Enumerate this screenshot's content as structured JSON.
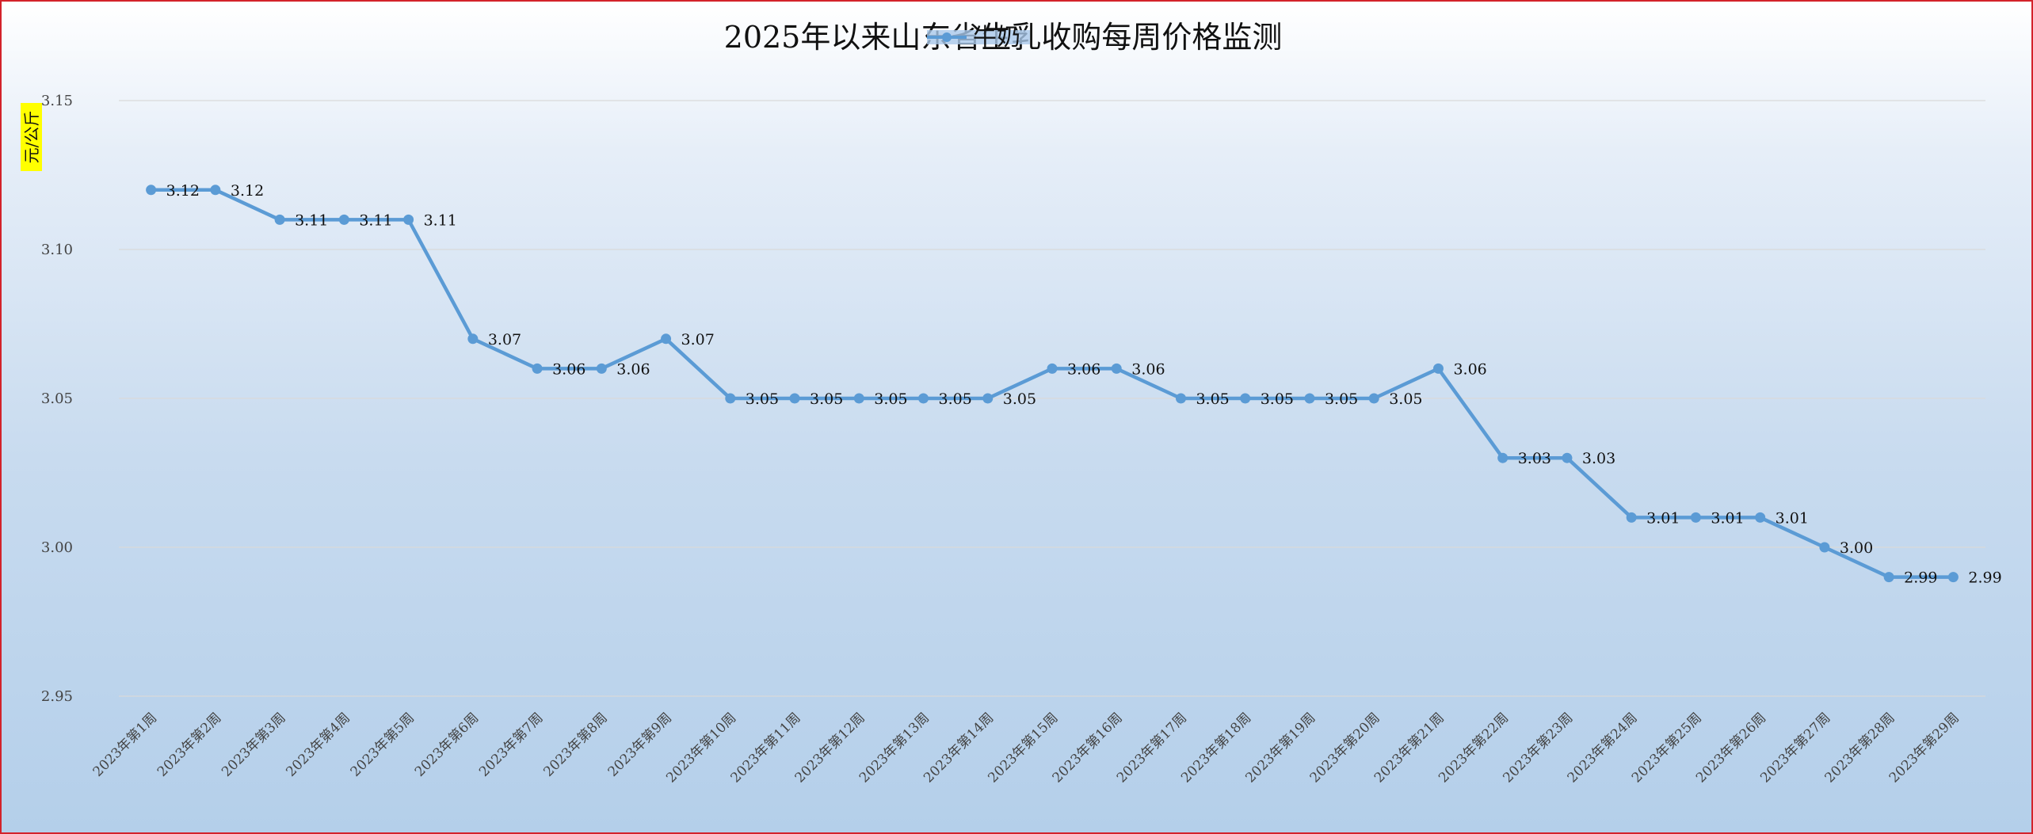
{
  "chart_data": {
    "type": "line",
    "title": "2025年以来山东省生乳收购每周价格监测",
    "ylabel": "元/公斤",
    "xlabel": "",
    "ylim": [
      2.95,
      3.15
    ],
    "yticks": [
      "2.95",
      "3.00",
      "3.05",
      "3.10",
      "3.15"
    ],
    "grid": true,
    "legend_position": "top-right",
    "categories": [
      "2023年第1周",
      "2023年第2周",
      "2023年第3周",
      "2023年第4周",
      "2023年第5周",
      "2023年第6周",
      "2023年第7周",
      "2023年第8周",
      "2023年第9周",
      "2023年第10周",
      "2023年第11周",
      "2023年第12周",
      "2023年第13周",
      "2023年第14周",
      "2023年第15周",
      "2023年第16周",
      "2023年第17周",
      "2023年第18周",
      "2023年第19周",
      "2023年第20周",
      "2023年第21周",
      "2023年第22周",
      "2023年第23周",
      "2023年第24周",
      "2023年第25周",
      "2023年第26周",
      "2023年第27周",
      "2023年第28周",
      "2023年第29周"
    ],
    "series": [
      {
        "name": "牛奶",
        "color": "#5b9bd5",
        "values": [
          3.12,
          3.12,
          3.11,
          3.11,
          3.11,
          3.07,
          3.06,
          3.06,
          3.07,
          3.05,
          3.05,
          3.05,
          3.05,
          3.05,
          3.06,
          3.06,
          3.05,
          3.05,
          3.05,
          3.05,
          3.06,
          3.03,
          3.03,
          3.01,
          3.01,
          3.01,
          3.0,
          2.99,
          2.99
        ],
        "labels": [
          "3.12",
          "3.12",
          "3.11",
          "3.11",
          "3.11",
          "3.07",
          "3.06",
          "3.06",
          "3.07",
          "3.05",
          "3.05",
          "3.05",
          "3.05",
          "3.05",
          "3.06",
          "3.06",
          "3.05",
          "3.05",
          "3.05",
          "3.05",
          "3.06",
          "3.03",
          "3.03",
          "3.01",
          "3.01",
          "3.01",
          "3.00",
          "2.99",
          "2.99"
        ]
      }
    ]
  },
  "colors": {
    "border": "#d3222a",
    "ylabel_highlight": "#ffff00",
    "gridline": "#d9d9d9"
  }
}
